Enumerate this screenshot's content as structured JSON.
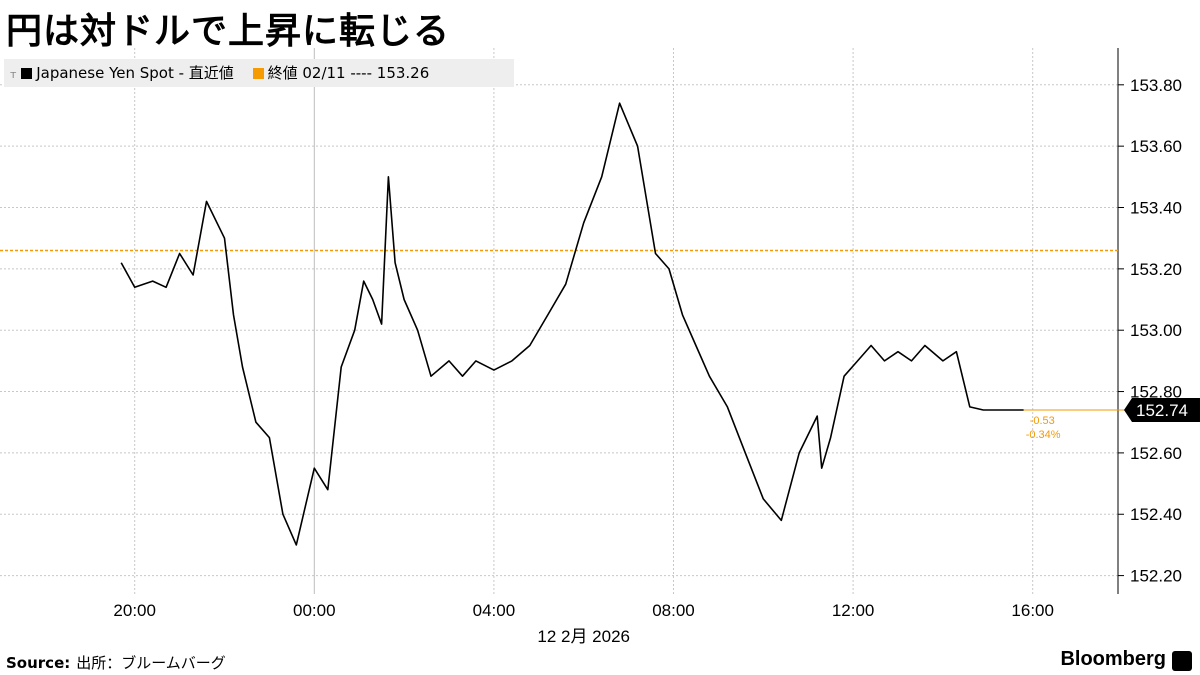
{
  "title": "円は対ドルで上昇に転じる",
  "legend": {
    "series_label": "Japanese Yen Spot - 直近値",
    "close_label": "終値 02/11 ---- 153.26",
    "series_color": "#000000",
    "close_color": "#f59a00"
  },
  "last_value_label": "152.74",
  "change_abs": "-0.53",
  "change_pct": "-0.34%",
  "date_label": "12 2月 2026",
  "source_label": "Source:",
  "source_text": "出所：ブルームバーグ",
  "brand": "Bloomberg",
  "chart_data": {
    "type": "line",
    "title": "円は対ドルで上昇に転じる",
    "series": [
      {
        "name": "Japanese Yen Spot - 直近値",
        "x_hours": [
          -4.3,
          -4.0,
          -3.6,
          -3.3,
          -3.0,
          -2.7,
          -2.4,
          -2.0,
          -1.8,
          -1.6,
          -1.3,
          -1.0,
          -0.7,
          -0.4,
          0.0,
          0.3,
          0.6,
          0.9,
          1.1,
          1.3,
          1.5,
          1.65,
          1.8,
          2.0,
          2.3,
          2.6,
          3.0,
          3.3,
          3.6,
          4.0,
          4.4,
          4.8,
          5.2,
          5.6,
          6.0,
          6.4,
          6.8,
          7.2,
          7.6,
          7.9,
          8.2,
          8.5,
          8.8,
          9.2,
          9.6,
          10.0,
          10.4,
          10.8,
          11.2,
          11.3,
          11.5,
          11.8,
          12.1,
          12.4,
          12.7,
          13.0,
          13.3,
          13.6,
          14.0,
          14.3,
          14.6,
          14.9,
          15.2,
          15.5,
          15.8
        ],
        "values": [
          153.22,
          153.14,
          153.16,
          153.14,
          153.25,
          153.18,
          153.42,
          153.3,
          153.05,
          152.88,
          152.7,
          152.65,
          152.4,
          152.3,
          152.55,
          152.48,
          152.88,
          153.0,
          153.16,
          153.1,
          153.02,
          153.5,
          153.22,
          153.1,
          153.0,
          152.85,
          152.9,
          152.85,
          152.9,
          152.87,
          152.9,
          152.95,
          153.05,
          153.15,
          153.35,
          153.5,
          153.74,
          153.6,
          153.25,
          153.2,
          153.05,
          152.95,
          152.85,
          152.75,
          152.6,
          152.45,
          152.38,
          152.6,
          152.72,
          152.55,
          152.65,
          152.85,
          152.9,
          152.95,
          152.9,
          152.93,
          152.9,
          152.95,
          152.9,
          152.93,
          152.75,
          152.74,
          152.74,
          152.74,
          152.74
        ],
        "color": "#000000"
      }
    ],
    "reference_line": {
      "label": "終値 02/11",
      "value": 153.26,
      "color": "#f59a00",
      "style": "dashed"
    },
    "x_ticks": [
      "20:00",
      "00:00",
      "04:00",
      "08:00",
      "12:00",
      "16:00"
    ],
    "x_tick_hours": [
      -4,
      0,
      4,
      8,
      12,
      16
    ],
    "x_range_hours": [
      -7,
      17.9
    ],
    "y_ticks": [
      "152.20",
      "152.40",
      "152.60",
      "152.80",
      "153.00",
      "153.20",
      "153.40",
      "153.60",
      "153.80"
    ],
    "y_tick_values": [
      152.2,
      152.4,
      152.6,
      152.8,
      153.0,
      153.2,
      153.4,
      153.6,
      153.8
    ],
    "ylim": [
      152.14,
      153.92
    ],
    "last_value": 152.74,
    "grid": true,
    "y_axis_position": "right",
    "legend_position": "top-left"
  }
}
